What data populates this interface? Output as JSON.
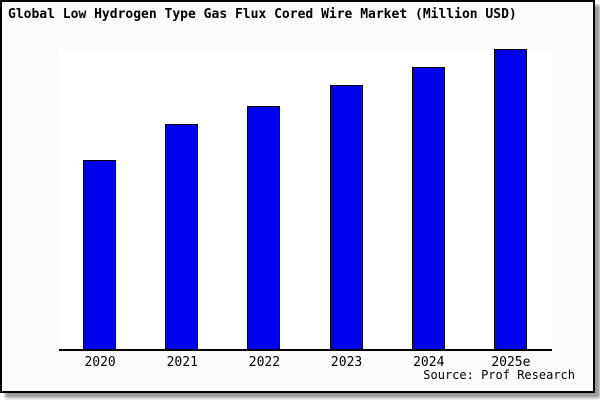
{
  "colors": {
    "bar_fill": "#0000EE",
    "bar_border": "#000000",
    "figure_background": "#FBFBFB",
    "plot_background": "#FFFFFF",
    "axis_line": "#000000",
    "title_text": "#000000",
    "shadow": "#9A9A9A"
  },
  "chart_data": {
    "type": "bar",
    "title": "Global Low Hydrogen Type Gas Flux Cored Wire Market (Million USD)",
    "categories": [
      "2020",
      "2021",
      "2022",
      "2023",
      "2024",
      "2025e"
    ],
    "values": [
      63,
      75,
      81,
      88,
      94,
      100
    ],
    "value_note": "y-axis has no tick labels; values are relative estimates from bar heights with 2025e = 100",
    "xlabel": "",
    "ylabel": "",
    "ylim": [
      0,
      100
    ],
    "grid": false,
    "legend": false,
    "source": "Source: Prof Research"
  }
}
